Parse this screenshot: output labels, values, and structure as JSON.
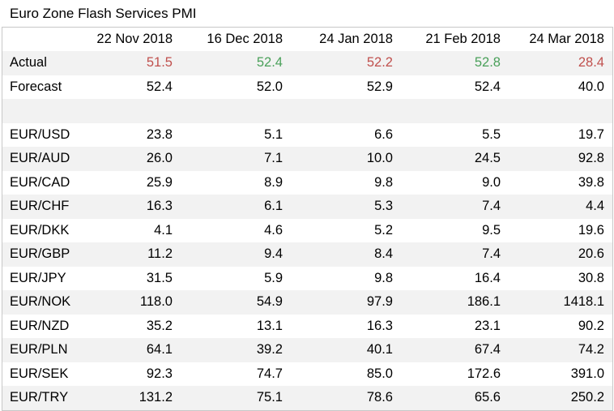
{
  "title": "Euro Zone Flash Services PMI",
  "columns": [
    "",
    "22 Nov 2018",
    "16 Dec 2018",
    "24 Jan 2018",
    "21 Feb 2018",
    "24 Mar 2018"
  ],
  "actual": {
    "label": "Actual",
    "values": [
      "51.5",
      "52.4",
      "52.2",
      "52.8",
      "28.4"
    ],
    "colors": [
      "red",
      "green",
      "red",
      "green",
      "red"
    ]
  },
  "forecast": {
    "label": "Forecast",
    "values": [
      "52.4",
      "52.0",
      "52.9",
      "52.4",
      "40.0"
    ]
  },
  "pairs": [
    {
      "label": "EUR/USD",
      "values": [
        "23.8",
        "5.1",
        "6.6",
        "5.5",
        "19.7"
      ]
    },
    {
      "label": "EUR/AUD",
      "values": [
        "26.0",
        "7.1",
        "10.0",
        "24.5",
        "92.8"
      ]
    },
    {
      "label": "EUR/CAD",
      "values": [
        "25.9",
        "8.9",
        "9.8",
        "9.0",
        "39.8"
      ]
    },
    {
      "label": "EUR/CHF",
      "values": [
        "16.3",
        "6.1",
        "5.3",
        "7.4",
        "4.4"
      ]
    },
    {
      "label": "EUR/DKK",
      "values": [
        "4.1",
        "4.6",
        "5.2",
        "9.5",
        "19.6"
      ]
    },
    {
      "label": "EUR/GBP",
      "values": [
        "11.2",
        "9.4",
        "8.4",
        "7.4",
        "20.6"
      ]
    },
    {
      "label": "EUR/JPY",
      "values": [
        "31.5",
        "5.9",
        "9.8",
        "16.4",
        "30.8"
      ]
    },
    {
      "label": "EUR/NOK",
      "values": [
        "118.0",
        "54.9",
        "97.9",
        "186.1",
        "1418.1"
      ]
    },
    {
      "label": "EUR/NZD",
      "values": [
        "35.2",
        "13.1",
        "16.3",
        "23.1",
        "90.2"
      ]
    },
    {
      "label": "EUR/PLN",
      "values": [
        "64.1",
        "39.2",
        "40.1",
        "67.4",
        "74.2"
      ]
    },
    {
      "label": "EUR/SEK",
      "values": [
        "92.3",
        "74.7",
        "85.0",
        "172.6",
        "391.0"
      ]
    },
    {
      "label": "EUR/TRY",
      "values": [
        "131.2",
        "75.1",
        "78.6",
        "65.6",
        "250.2"
      ]
    }
  ]
}
